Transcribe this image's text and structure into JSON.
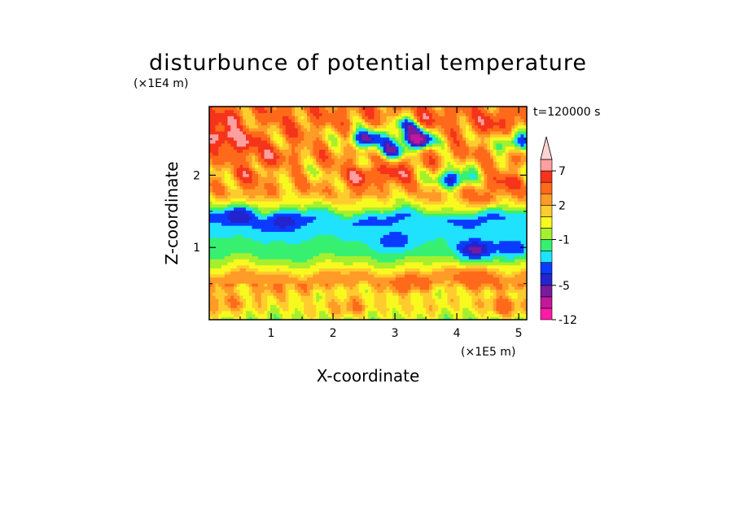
{
  "chart_data": {
    "type": "heatmap",
    "title": "disturbunce of potential temperature",
    "xlabel": "X-coordinate",
    "ylabel": "Z-coordinate",
    "x_unit": "(×1E5 m)",
    "y_unit": "(×1E4 m)",
    "time_label": "t=120000 s",
    "xlim": [
      0,
      5.13
    ],
    "ylim": [
      0,
      2.95
    ],
    "x_ticks": [
      "1",
      "2",
      "3",
      "4",
      "5"
    ],
    "y_ticks": [
      "1",
      "2"
    ],
    "colorbar": {
      "levels": [
        -12,
        -9,
        -7,
        -5,
        -4,
        -3,
        -2,
        -1,
        0,
        1,
        2,
        3,
        5,
        7,
        9,
        12
      ],
      "tick_labels": [
        "-12",
        "-5",
        "-1",
        "2",
        "7"
      ],
      "tick_values": [
        -12,
        -5,
        -1,
        2,
        7
      ],
      "colors": [
        "#ff1aa8",
        "#c3189b",
        "#7a1a9e",
        "#2424cf",
        "#0b3bff",
        "#1fe2ff",
        "#38f070",
        "#a6ef2e",
        "#f7f91f",
        "#ffcc2f",
        "#ff9b26",
        "#ff6a1a",
        "#f5341b",
        "#ff9fa0",
        "#ffd3d3"
      ],
      "extend": "max"
    },
    "bands": [
      {
        "z": 0.05,
        "v": -0.5
      },
      {
        "z": 0.18,
        "v": 1.5
      },
      {
        "z": 0.35,
        "v": 0.5
      },
      {
        "z": 0.55,
        "v": 3.0
      },
      {
        "z": 0.75,
        "v": 0.3
      },
      {
        "z": 0.9,
        "v": -1.5
      },
      {
        "z": 1.05,
        "v": -2.0
      },
      {
        "z": 1.22,
        "v": -2.0
      },
      {
        "z": 1.4,
        "v": -3.5
      },
      {
        "z": 1.58,
        "v": 0.5
      },
      {
        "z": 1.8,
        "v": 2.5
      },
      {
        "z": 2.05,
        "v": 1.5
      },
      {
        "z": 2.3,
        "v": 3.0
      },
      {
        "z": 2.55,
        "v": 2.0
      },
      {
        "z": 2.8,
        "v": 3.5
      }
    ],
    "features": [
      {
        "x": 0.25,
        "z": 2.55,
        "v": 9.5
      },
      {
        "x": 0.55,
        "z": 2.45,
        "v": 7.5
      },
      {
        "x": 0.15,
        "z": 2.75,
        "v": 6.5
      },
      {
        "x": 0.95,
        "z": 2.25,
        "v": 5.5
      },
      {
        "x": 0.6,
        "z": 2.0,
        "v": 5.0
      },
      {
        "x": 1.3,
        "z": 2.6,
        "v": 4.0
      },
      {
        "x": 2.55,
        "z": 2.5,
        "v": -5.5
      },
      {
        "x": 3.2,
        "z": 2.7,
        "v": -5.0
      },
      {
        "x": 3.35,
        "z": 2.5,
        "v": -8.0
      },
      {
        "x": 2.95,
        "z": 2.35,
        "v": -4.0
      },
      {
        "x": 3.05,
        "z": 2.05,
        "v": 6.5
      },
      {
        "x": 2.45,
        "z": 2.0,
        "v": 7.0
      },
      {
        "x": 3.5,
        "z": 2.8,
        "v": 5.0
      },
      {
        "x": 4.0,
        "z": 2.65,
        "v": 3.5
      },
      {
        "x": 4.6,
        "z": 2.75,
        "v": 6.0
      },
      {
        "x": 4.95,
        "z": 2.45,
        "v": -3.5
      },
      {
        "x": 3.95,
        "z": 1.95,
        "v": -5.0
      },
      {
        "x": 4.8,
        "z": 1.9,
        "v": 5.5
      },
      {
        "x": 4.4,
        "z": 1.7,
        "v": 3.5
      },
      {
        "x": 0.5,
        "z": 1.45,
        "v": -5.0
      },
      {
        "x": 1.2,
        "z": 1.35,
        "v": -4.5
      },
      {
        "x": 4.3,
        "z": 0.98,
        "v": -5.5
      },
      {
        "x": 3.0,
        "z": 1.1,
        "v": -4.0
      },
      {
        "x": 4.9,
        "z": 1.0,
        "v": -4.0
      },
      {
        "x": 4.3,
        "z": 0.6,
        "v": 5.0
      },
      {
        "x": 3.2,
        "z": 0.5,
        "v": 4.0
      },
      {
        "x": 1.0,
        "z": 0.45,
        "v": 3.0
      },
      {
        "x": 0.3,
        "z": 0.25,
        "v": 3.0
      },
      {
        "x": 2.3,
        "z": 0.18,
        "v": 3.0
      },
      {
        "x": 4.75,
        "z": 0.2,
        "v": 4.0
      }
    ]
  }
}
